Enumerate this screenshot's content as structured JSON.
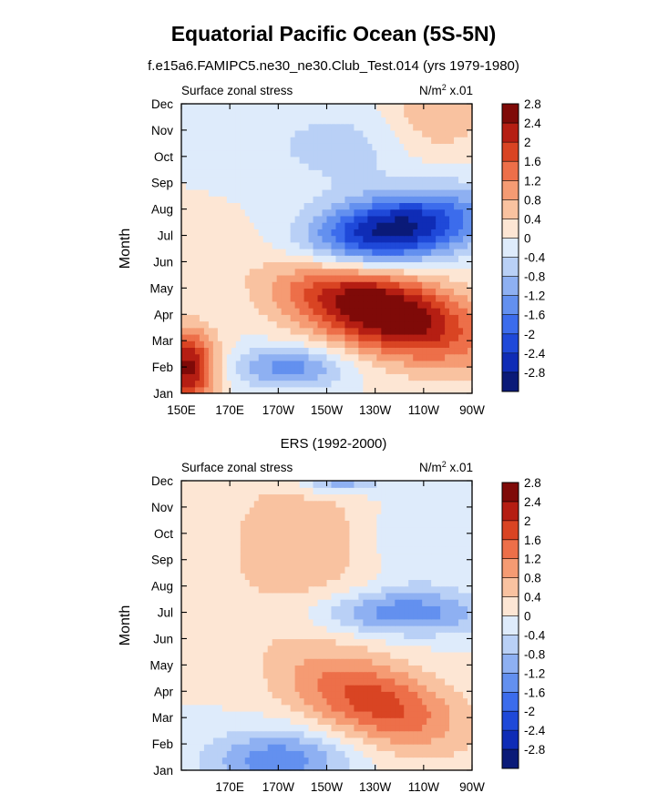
{
  "figure": {
    "title": "Equatorial Pacific Ocean (5S-5N)"
  },
  "chart_data": [
    {
      "type": "heatmap",
      "title": "f.e15a6.FAMIPC5.ne30_ne30.Club_Test.014 (yrs 1979-1980)",
      "left_label": "Surface zonal stress",
      "units": "N/m",
      "units_sup": "2",
      "units_scale": " x.01",
      "ylabel": "Month",
      "xlabel": "",
      "x_ticks": [
        "150E",
        "170E",
        "170W",
        "150W",
        "130W",
        "110W",
        "90W"
      ],
      "y_ticks": [
        "Jan",
        "Feb",
        "Mar",
        "Apr",
        "May",
        "Jun",
        "Jul",
        "Aug",
        "Sep",
        "Oct",
        "Nov",
        "Dec"
      ],
      "colorbar_levels": [
        "2.8",
        "2.4",
        "2",
        "1.6",
        "1.2",
        "0.8",
        "0.4",
        "0",
        "-0.4",
        "-0.8",
        "-1.2",
        "-1.6",
        "-2",
        "-2.4",
        "-2.8"
      ],
      "x_range_deg": [
        150,
        270
      ],
      "features": [
        {
          "lon": 153,
          "month": 1.0,
          "amp": 2.6,
          "slon": 8,
          "smon": 1.0
        },
        {
          "lon": 195,
          "month": 1.0,
          "amp": -1.4,
          "slon": 16,
          "smon": 0.55
        },
        {
          "lon": 232,
          "month": 3.2,
          "amp": 3.1,
          "slon": 25,
          "smon": 1.35,
          "tilt": -11
        },
        {
          "lon": 237,
          "month": 6.2,
          "amp": -3.1,
          "slon": 24,
          "smon": 1.0,
          "tilt": 9
        },
        {
          "lon": 255,
          "month": 10.7,
          "amp": 0.8,
          "slon": 15,
          "smon": 1.2
        },
        {
          "lon": 215,
          "month": 9.4,
          "amp": -0.6,
          "slon": 22,
          "smon": 1.1
        }
      ]
    },
    {
      "type": "heatmap",
      "title": "ERS (1992-2000)",
      "left_label": "Surface zonal stress",
      "units": "N/m",
      "units_sup": "2",
      "units_scale": " x.01",
      "ylabel": "Month",
      "xlabel": "",
      "x_ticks": [
        "170E",
        "170W",
        "150W",
        "130W",
        "110W",
        "90W"
      ],
      "y_ticks": [
        "Jan",
        "Feb",
        "Mar",
        "Apr",
        "May",
        "Jun",
        "Jul",
        "Aug",
        "Sep",
        "Oct",
        "Nov",
        "Dec"
      ],
      "colorbar_levels": [
        "2.8",
        "2.4",
        "2",
        "1.6",
        "1.2",
        "0.8",
        "0.4",
        "0",
        "-0.4",
        "-0.8",
        "-1.2",
        "-1.6",
        "-2",
        "-2.4",
        "-2.8"
      ],
      "x_range_deg": [
        150,
        270
      ],
      "features": [
        {
          "lon": 230,
          "month": 2.6,
          "amp": 1.8,
          "slon": 22,
          "smon": 1.25,
          "tilt": -9
        },
        {
          "lon": 240,
          "month": 6.0,
          "amp": -1.5,
          "slon": 25,
          "smon": 0.6
        },
        {
          "lon": 190,
          "month": 0.4,
          "amp": -1.5,
          "slon": 20,
          "smon": 0.8
        },
        {
          "lon": 215,
          "month": 11.0,
          "amp": -1.3,
          "slon": 12,
          "smon": 0.35
        },
        {
          "lon": 200,
          "month": 8.5,
          "amp": 0.7,
          "slon": 25,
          "smon": 2.5
        },
        {
          "lon": 245,
          "month": 8.8,
          "amp": -0.5,
          "slon": 15,
          "smon": 1.5
        }
      ]
    }
  ]
}
